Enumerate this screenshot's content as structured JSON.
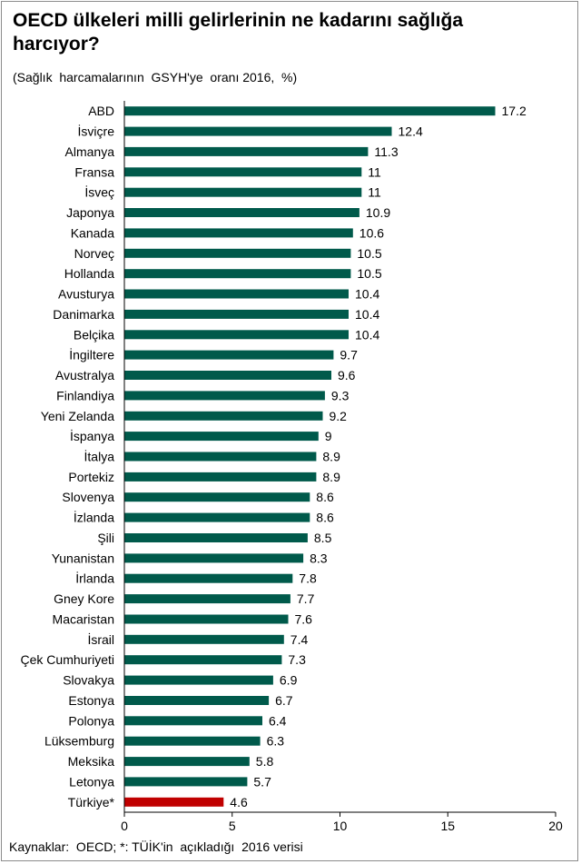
{
  "chart_data": {
    "type": "bar",
    "orientation": "horizontal",
    "title": "OECD ülkeleri milli gelirlerinin ne kadarını sağlığa harcıyor?",
    "subtitle": "(Sağlık  harcamalarının  GSYH'ye  oranı 2016,  %)",
    "source": "Kaynaklar:  OECD; *: TÜİK'in  açıkladığı  2016 verisi",
    "categories": [
      "ABD",
      "İsviçre",
      "Almanya",
      "Fransa",
      "İsveç",
      "Japonya",
      "Kanada",
      "Norveç",
      "Hollanda",
      "Avusturya",
      "Danimarka",
      "Belçika",
      "İngiltere",
      "Avustralya",
      "Finlandiya",
      "Yeni Zelanda",
      "İspanya",
      "İtalya",
      "Portekiz",
      "Slovenya",
      "İzlanda",
      "Şili",
      "Yunanistan",
      "İrlanda",
      "Gney Kore",
      "Macaristan",
      "İsrail",
      "Çek Cumhuriyeti",
      "Slovakya",
      "Estonya",
      "Polonya",
      "Lüksemburg",
      "Meksika",
      "Letonya",
      "Türkiye*"
    ],
    "values": [
      17.2,
      12.4,
      11.3,
      11,
      11,
      10.9,
      10.6,
      10.5,
      10.5,
      10.4,
      10.4,
      10.4,
      9.7,
      9.6,
      9.3,
      9.2,
      9,
      8.9,
      8.9,
      8.6,
      8.6,
      8.5,
      8.3,
      7.8,
      7.7,
      7.6,
      7.4,
      7.3,
      6.9,
      6.7,
      6.4,
      6.3,
      5.8,
      5.7,
      4.6
    ],
    "value_labels": [
      "17.2",
      "12.4",
      "11.3",
      "11",
      "11",
      "10.9",
      "10.6",
      "10.5",
      "10.5",
      "10.4",
      "10.4",
      "10.4",
      "9.7",
      "9.6",
      "9.3",
      "9.2",
      "9",
      "8.9",
      "8.9",
      "8.6",
      "8.6",
      "8.5",
      "8.3",
      "7.8",
      "7.7",
      "7.6",
      "7.4",
      "7.3",
      "6.9",
      "6.7",
      "6.4",
      "6.3",
      "5.8",
      "5.7",
      "4.6"
    ],
    "highlight_category": "Türkiye*",
    "xlim": [
      0,
      20
    ],
    "xticks": [
      0,
      5,
      10,
      15,
      20
    ],
    "xtick_labels": [
      "0",
      "5",
      "10",
      "15",
      "20"
    ],
    "xlabel": "",
    "ylabel": "",
    "grid": false,
    "colors": {
      "bar": "#005a4b",
      "highlight": "#c00000",
      "axis": "#000000"
    }
  }
}
